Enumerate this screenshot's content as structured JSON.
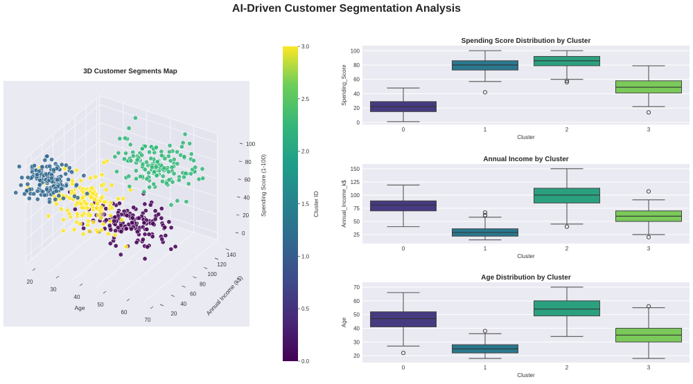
{
  "title": "AI-Driven Customer Segmentation Analysis",
  "chart_data": [
    {
      "type": "scatter3d",
      "title": "3D Customer Segments Map",
      "xlabel": "Age",
      "ylabel": "Annual Income (k$)",
      "zlabel": "Spending Score (1-100)",
      "x_ticks": [
        20,
        30,
        40,
        50,
        60,
        70
      ],
      "y_ticks": [
        20,
        40,
        60,
        80,
        100,
        120,
        140
      ],
      "z_ticks": [
        0,
        20,
        40,
        60,
        80,
        100
      ],
      "colorbar": {
        "label": "Cluster ID",
        "range": [
          0,
          3
        ],
        "ticks": [
          "0.0",
          "0.5",
          "1.0",
          "1.5",
          "2.0",
          "2.5",
          "3.0"
        ],
        "colormap": "viridis"
      },
      "cluster_colors": [
        "#440154",
        "#31688e",
        "#35b779",
        "#fde725"
      ],
      "grid": true
    },
    {
      "type": "box",
      "title": "Spending Score Distribution by Cluster",
      "xlabel": "Cluster",
      "ylabel": "Spending_Score",
      "categories": [
        "0",
        "1",
        "2",
        "3"
      ],
      "ylim": [
        -3,
        107
      ],
      "yticks": [
        0,
        20,
        40,
        60,
        80,
        100
      ],
      "boxes": [
        {
          "whisker_low": 1,
          "q1": 15,
          "median": 22,
          "q3": 29,
          "whisker_high": 48,
          "outliers": []
        },
        {
          "whisker_low": 57,
          "q1": 73,
          "median": 80,
          "q3": 86,
          "whisker_high": 100,
          "outliers": [
            42
          ]
        },
        {
          "whisker_low": 60,
          "q1": 79,
          "median": 86,
          "q3": 92,
          "whisker_high": 100,
          "outliers": [
            58,
            56
          ]
        },
        {
          "whisker_low": 22,
          "q1": 41,
          "median": 49,
          "q3": 58,
          "whisker_high": 79,
          "outliers": [
            14
          ]
        }
      ],
      "colors": [
        "#463a80",
        "#2a788e",
        "#2ba07f",
        "#7ac95a"
      ],
      "grid": true
    },
    {
      "type": "box",
      "title": "Annual Income by Cluster",
      "xlabel": "Cluster",
      "ylabel": "Annual_Income_k$",
      "categories": [
        "0",
        "1",
        "2",
        "3"
      ],
      "ylim": [
        8,
        159
      ],
      "yticks": [
        25,
        50,
        75,
        100,
        125,
        150
      ],
      "boxes": [
        {
          "whisker_low": 40,
          "q1": 70,
          "median": 81,
          "q3": 89,
          "whisker_high": 119,
          "outliers": []
        },
        {
          "whisker_low": 15,
          "q1": 22,
          "median": 29,
          "q3": 36,
          "whisker_high": 58,
          "outliers": [
            61,
            62,
            67
          ]
        },
        {
          "whisker_low": 45,
          "q1": 85,
          "median": 100,
          "q3": 113,
          "whisker_high": 150,
          "outliers": [
            40
          ]
        },
        {
          "whisker_low": 25,
          "q1": 50,
          "median": 60,
          "q3": 70,
          "whisker_high": 91,
          "outliers": [
            107,
            20
          ]
        }
      ],
      "colors": [
        "#463a80",
        "#2a788e",
        "#2ba07f",
        "#7ac95a"
      ],
      "grid": true
    },
    {
      "type": "box",
      "title": "Age Distribution by Cluster",
      "xlabel": "Cluster",
      "ylabel": "Age",
      "categories": [
        "0",
        "1",
        "2",
        "3"
      ],
      "ylim": [
        15,
        73.5
      ],
      "yticks": [
        20,
        30,
        40,
        50,
        60,
        70
      ],
      "boxes": [
        {
          "whisker_low": 27,
          "q1": 41,
          "median": 47,
          "q3": 52,
          "whisker_high": 66,
          "outliers": [
            22
          ]
        },
        {
          "whisker_low": 18,
          "q1": 22,
          "median": 25,
          "q3": 28,
          "whisker_high": 36,
          "outliers": [
            38
          ]
        },
        {
          "whisker_low": 34,
          "q1": 49,
          "median": 54,
          "q3": 60,
          "whisker_high": 70,
          "outliers": []
        },
        {
          "whisker_low": 18,
          "q1": 30,
          "median": 35,
          "q3": 40,
          "whisker_high": 55,
          "outliers": [
            56
          ]
        }
      ],
      "colors": [
        "#463a80",
        "#2a788e",
        "#2ba07f",
        "#7ac95a"
      ],
      "grid": true
    }
  ]
}
